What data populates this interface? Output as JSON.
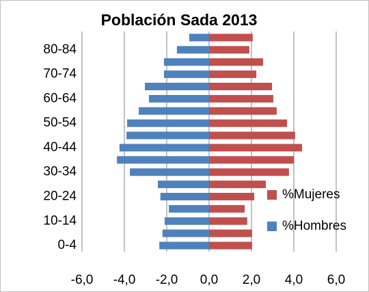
{
  "chart_data": {
    "type": "bar",
    "orientation": "horizontal",
    "title": "Población Sada 2013",
    "categories": [
      "0-4",
      null,
      "10-14",
      null,
      "20-24",
      null,
      "30-34",
      null,
      "40-44",
      null,
      "50-54",
      null,
      "60-64",
      null,
      "70-74",
      null,
      "80-84",
      null
    ],
    "series": [
      {
        "name": "%Mujeres",
        "color": "#c0504d",
        "values": [
          2.03,
          2.03,
          1.8,
          1.68,
          2.13,
          2.68,
          3.77,
          4.0,
          4.39,
          4.06,
          3.68,
          3.19,
          3.03,
          2.97,
          2.23,
          2.55,
          1.9,
          2.06
        ]
      },
      {
        "name": "%Hombres",
        "color": "#4f81bd",
        "values": [
          -2.35,
          -2.2,
          -2.1,
          -1.9,
          -2.3,
          -2.42,
          -3.74,
          -4.35,
          -4.23,
          -3.9,
          -3.87,
          -3.32,
          -2.84,
          -3.03,
          -2.13,
          -2.13,
          -1.52,
          -0.94
        ]
      }
    ],
    "xlim": [
      -6,
      6
    ],
    "xticks": [
      {
        "value": -6,
        "label": "-6,0"
      },
      {
        "value": -4,
        "label": "-4,0"
      },
      {
        "value": -2,
        "label": "-2,0"
      },
      {
        "value": 0,
        "label": "0,0"
      },
      {
        "value": 2,
        "label": "2,0"
      },
      {
        "value": 4,
        "label": "4,0"
      },
      {
        "value": 6,
        "label": "6,0"
      }
    ],
    "grid": true,
    "legend": "right"
  }
}
